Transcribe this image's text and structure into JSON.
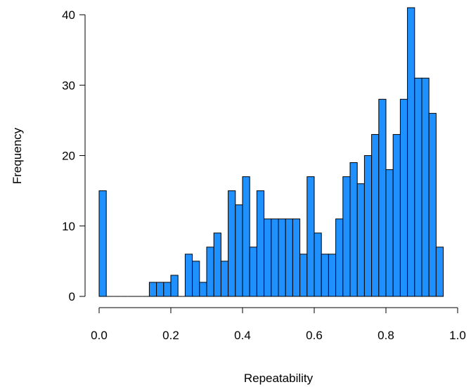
{
  "chart_data": {
    "type": "bar",
    "title": "",
    "xlabel": "Repeatability",
    "ylabel": "Frequency",
    "bin_width": 0.02,
    "bin_start": 0.0,
    "values": [
      15,
      0,
      0,
      0,
      0,
      0,
      0,
      2,
      2,
      2,
      3,
      0,
      6,
      5,
      2,
      7,
      9,
      5,
      15,
      13,
      17,
      7,
      15,
      11,
      11,
      11,
      11,
      11,
      6,
      17,
      9,
      6,
      6,
      11,
      17,
      19,
      16,
      20,
      23,
      28,
      18,
      23,
      28,
      41,
      31,
      31,
      26,
      7
    ],
    "xlim": [
      0,
      1
    ],
    "ylim": [
      0,
      40
    ],
    "x_ticks": [
      0.0,
      0.2,
      0.4,
      0.6,
      0.8,
      1.0
    ],
    "x_tick_labels": [
      "0.0",
      "0.2",
      "0.4",
      "0.6",
      "0.8",
      "1.0"
    ],
    "y_ticks": [
      0,
      10,
      20,
      30,
      40
    ],
    "y_tick_labels": [
      "0",
      "10",
      "20",
      "30",
      "40"
    ],
    "bar_color": "#1E90FF",
    "bar_edge_color": "#000000",
    "grid": false,
    "legend": "none"
  }
}
